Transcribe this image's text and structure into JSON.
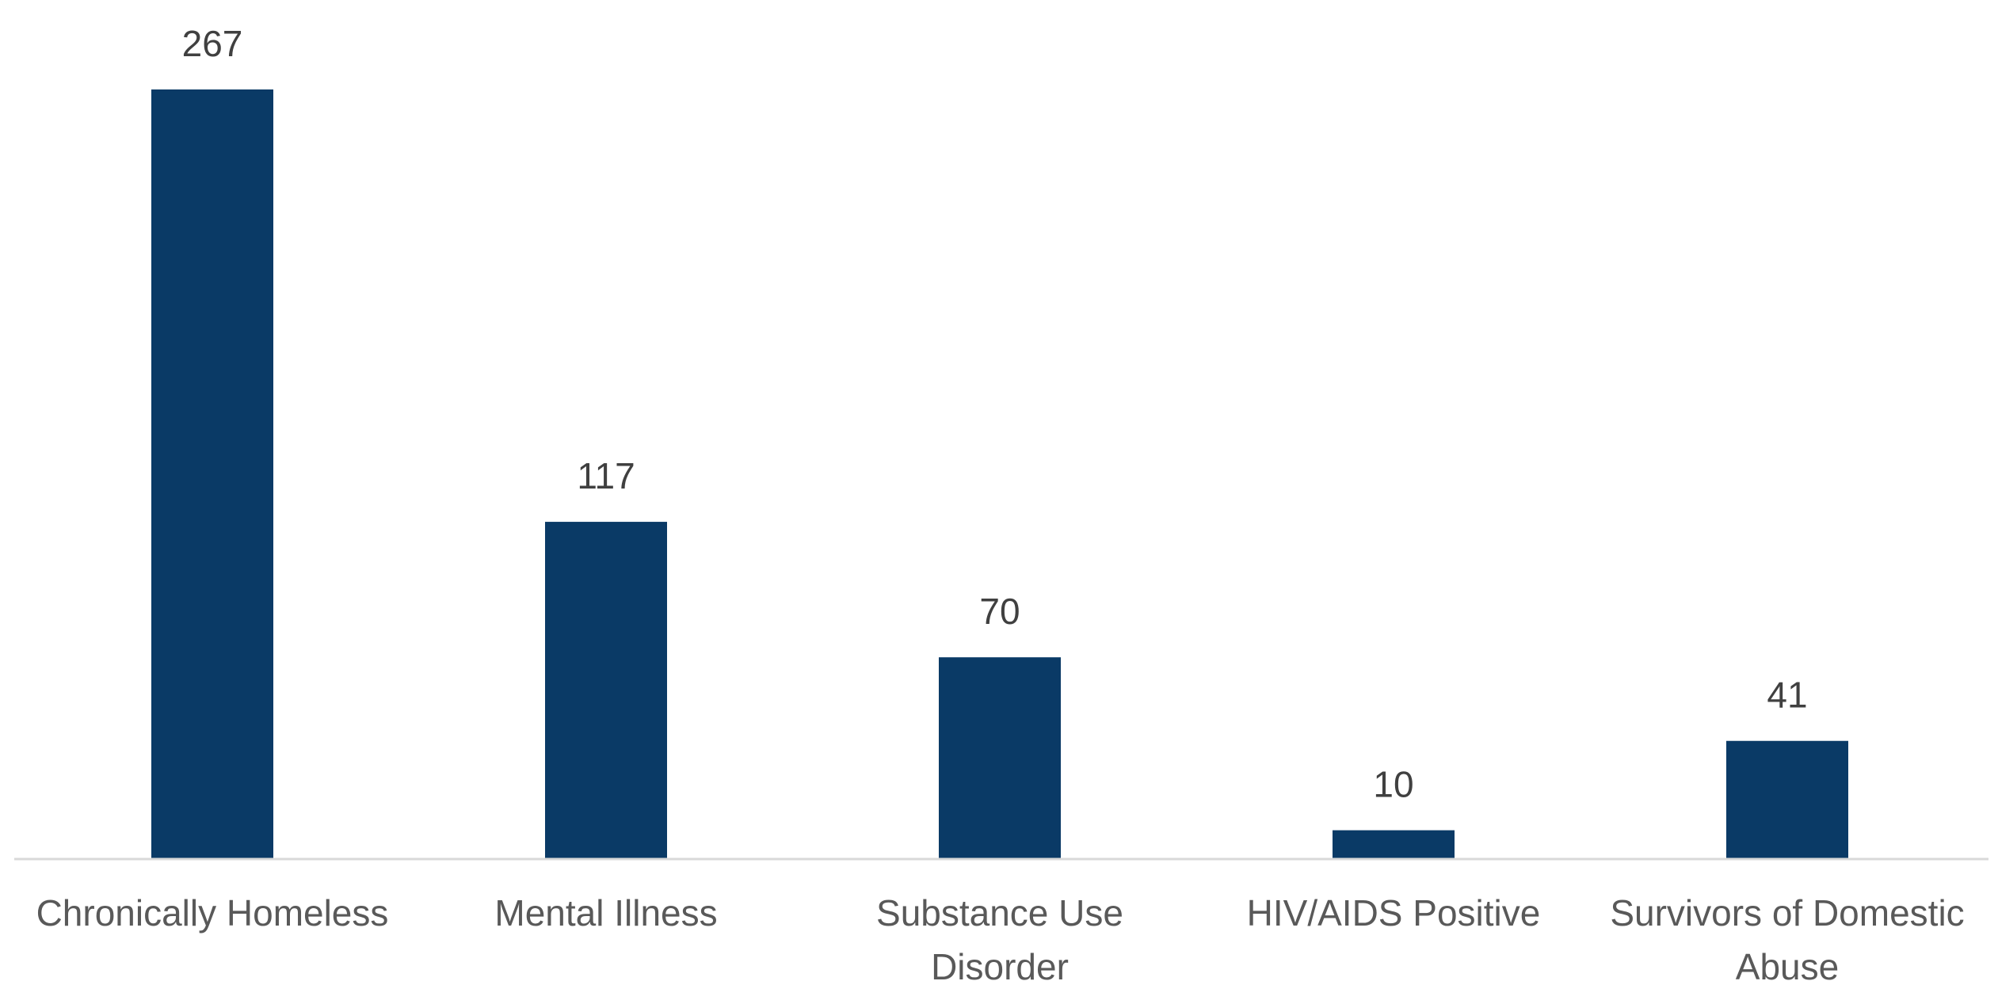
{
  "chart_data": {
    "type": "bar",
    "title": "",
    "xlabel": "",
    "ylabel": "",
    "categories": [
      [
        "Chronically Homeless"
      ],
      [
        "Mental Illness"
      ],
      [
        "Substance Use",
        "Disorder"
      ],
      [
        "HIV/AIDS Positive"
      ],
      [
        "Survivors of Domestic",
        "Abuse"
      ]
    ],
    "values": [
      267,
      117,
      70,
      10,
      41
    ],
    "ylim": [
      0,
      267
    ],
    "grid": false,
    "legend": "none",
    "bar_color": "#0a3a66",
    "axis_color": "#d9d9d9"
  }
}
